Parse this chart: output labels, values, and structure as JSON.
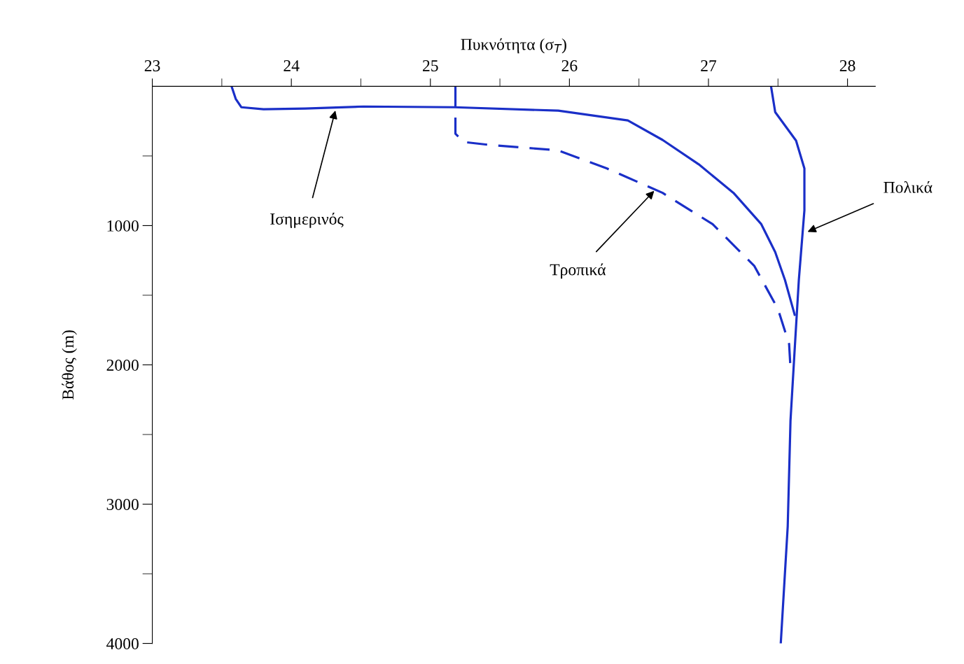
{
  "chart_data": {
    "type": "line",
    "xlabel": "Πυκνότητα (σ$_{T}$)",
    "ylabel": "Βάθος (m)",
    "xlim": [
      23,
      28.2
    ],
    "xticks": [
      23,
      {
        "value": 23.5,
        "label": null
      },
      24,
      {
        "value": 24.5,
        "label": null
      },
      25,
      {
        "value": 25.5,
        "label": null
      },
      26,
      {
        "value": 26.5,
        "label": null
      },
      27,
      {
        "value": 27.5,
        "label": null
      },
      28
    ],
    "ylim": [
      4000,
      0
    ],
    "yticks": [
      {
        "value": 500,
        "label": null
      },
      1000,
      {
        "value": 1500,
        "label": null
      },
      2000,
      {
        "value": 2500,
        "label": null
      },
      3000,
      {
        "value": 3500,
        "label": null
      },
      4000
    ],
    "grid": false,
    "marker": "none",
    "series": [
      {
        "color": "#1a2fc8",
        "line_style": "solid",
        "x": [
          23.57,
          23.6,
          23.64,
          23.8,
          24.1,
          24.52,
          25.17,
          25.92,
          26.42,
          26.67,
          26.93,
          27.18,
          27.38,
          27.48,
          27.55,
          27.62
        ],
        "values": [
          0,
          90,
          150,
          165,
          160,
          145,
          150,
          175,
          245,
          385,
          560,
          765,
          990,
          1190,
          1390,
          1640
        ]
      },
      {
        "color": "#1a2fc8",
        "line_style": "dashed",
        "x": [
          25.18,
          25.18,
          25.24,
          25.42,
          25.92,
          26.27,
          26.67,
          27.03,
          27.33,
          27.5,
          27.58,
          27.59
        ],
        "values": [
          0,
          340,
          400,
          420,
          460,
          590,
          765,
          990,
          1290,
          1600,
          1850,
          2025
        ]
      },
      {
        "color": "#1a2fc8",
        "line_style": "solid",
        "x": [
          27.45,
          27.48,
          27.63,
          27.69,
          27.69,
          27.65,
          27.62,
          27.59,
          27.57,
          27.52
        ],
        "values": [
          0,
          185,
          390,
          590,
          890,
          1390,
          1890,
          2400,
          3160,
          4000
        ]
      }
    ],
    "annotations": [
      {
        "text": "Ισημερινός",
        "x": 24.32,
        "y": 160
      },
      {
        "text": "Τροπικά",
        "x": 26.62,
        "y": 740
      },
      {
        "text": "Πολικά",
        "x": 27.7,
        "y": 1050
      }
    ]
  }
}
